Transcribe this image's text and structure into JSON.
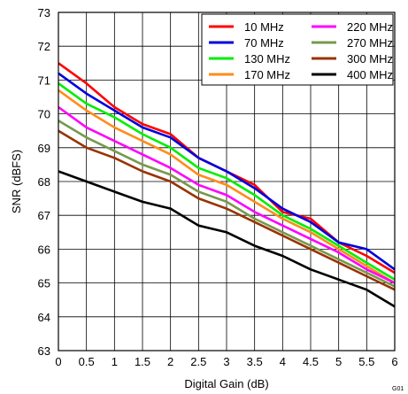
{
  "chart_data": {
    "type": "line",
    "title": "",
    "xlabel": "Digital Gain (dB)",
    "ylabel": "SNR (dBFS)",
    "xlim": [
      0,
      6
    ],
    "ylim": [
      63,
      73
    ],
    "xticks": [
      "0",
      "0.5",
      "1",
      "1.5",
      "2",
      "2.5",
      "3",
      "3.5",
      "4",
      "4.5",
      "5",
      "5.5",
      "6"
    ],
    "yticks": [
      "63",
      "64",
      "65",
      "66",
      "67",
      "68",
      "69",
      "70",
      "71",
      "72",
      "73"
    ],
    "grid": true,
    "legend_position": "top-right",
    "figure_code": "G01",
    "x": [
      0,
      0.5,
      1,
      1.5,
      2,
      2.5,
      3,
      3.5,
      4,
      4.5,
      5,
      5.5,
      6
    ],
    "series": [
      {
        "name": "10 MHz",
        "color": "#ff0000",
        "values": [
          71.5,
          70.9,
          70.2,
          69.7,
          69.4,
          68.7,
          68.3,
          67.9,
          67.1,
          66.9,
          66.2,
          65.8,
          65.3
        ]
      },
      {
        "name": "70 MHz",
        "color": "#0000dd",
        "values": [
          71.2,
          70.6,
          70.1,
          69.6,
          69.3,
          68.7,
          68.3,
          67.8,
          67.2,
          66.8,
          66.2,
          66.0,
          65.4
        ]
      },
      {
        "name": "130 MHz",
        "color": "#00ee00",
        "values": [
          70.9,
          70.3,
          69.9,
          69.4,
          69.0,
          68.4,
          68.1,
          67.6,
          67.0,
          66.6,
          66.1,
          65.6,
          65.1
        ]
      },
      {
        "name": "170 MHz",
        "color": "#ff8c1a",
        "values": [
          70.7,
          70.1,
          69.6,
          69.2,
          68.8,
          68.2,
          67.9,
          67.4,
          66.9,
          66.5,
          66.0,
          65.5,
          65.0
        ]
      },
      {
        "name": "220 MHz",
        "color": "#ff00ff",
        "values": [
          70.2,
          69.6,
          69.2,
          68.8,
          68.4,
          67.9,
          67.6,
          67.1,
          66.7,
          66.3,
          65.9,
          65.4,
          65.0
        ]
      },
      {
        "name": "270 MHz",
        "color": "#77994d",
        "values": [
          69.8,
          69.3,
          68.9,
          68.5,
          68.2,
          67.7,
          67.4,
          66.9,
          66.5,
          66.1,
          65.7,
          65.3,
          64.9
        ]
      },
      {
        "name": "300 MHz",
        "color": "#993300",
        "values": [
          69.5,
          69.0,
          68.7,
          68.3,
          68.0,
          67.5,
          67.2,
          66.8,
          66.4,
          66.0,
          65.6,
          65.2,
          64.8
        ]
      },
      {
        "name": "400 MHz",
        "color": "#000000",
        "values": [
          68.3,
          68.0,
          67.7,
          67.4,
          67.2,
          66.7,
          66.5,
          66.1,
          65.8,
          65.4,
          65.1,
          64.8,
          64.3
        ]
      }
    ]
  }
}
